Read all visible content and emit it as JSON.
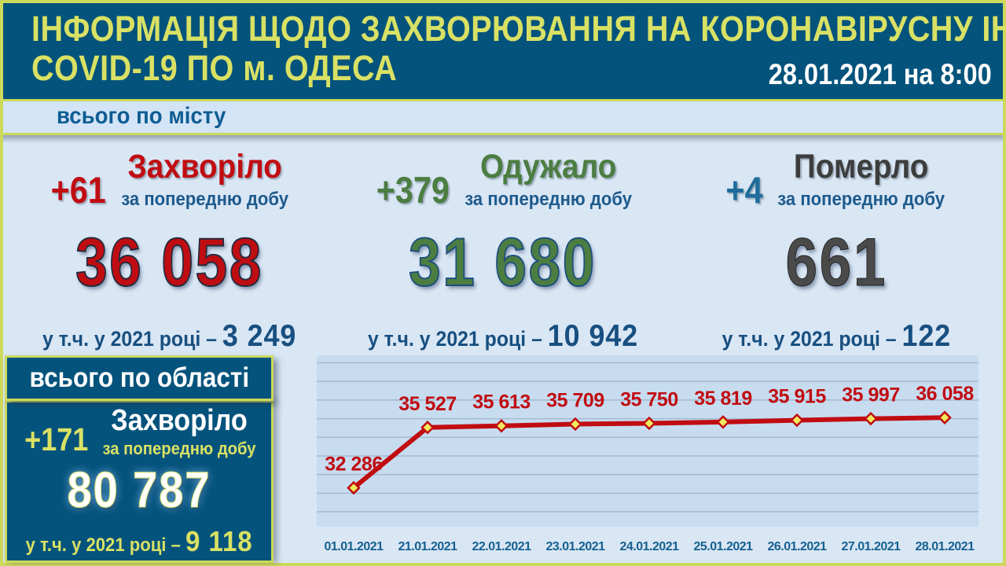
{
  "header": {
    "title_line1": "ІНФОРМАЦІЯ ЩОДО ЗАХВОРЮВАННЯ НА КОРОНАВІРУСНУ ІНФЕКЦІЮ",
    "title_line2": "COVID-19 ПО м. ОДЕСА",
    "date": "28.01.2021 на 8:00"
  },
  "city_band": {
    "label": "всього по місту"
  },
  "stats": {
    "0": {
      "delta": "+61",
      "title": "Захворіло",
      "subtitle": "за попередню добу",
      "total": "36 058",
      "year_label": "у т.ч. у 2021 році – ",
      "year_value": "3 249",
      "color": "#c00d12"
    },
    "1": {
      "delta": "+379",
      "title": "Одужало",
      "subtitle": "за попередню добу",
      "total": "31 680",
      "year_label": "у т.ч. у 2021 році – ",
      "year_value": "10 942",
      "color": "#4c7d41"
    },
    "2": {
      "delta": "+4",
      "title": "Померло",
      "subtitle": "за попередню добу",
      "total": "661",
      "year_label": "у т.ч. у 2021 році – ",
      "year_value": "122",
      "color": "#4a4a4a"
    }
  },
  "region_box": {
    "title": "всього по області",
    "delta": "+171",
    "stat_title": "Захворіло",
    "subtitle": "за попередню добу",
    "total": "80 787",
    "year_label": "у т.ч. у 2021 році – ",
    "year_value": "9 118"
  },
  "chart_data": {
    "type": "line",
    "title": "",
    "xlabel": "",
    "ylabel": "",
    "x": [
      "01.01.2021",
      "21.01.2021",
      "22.01.2021",
      "23.01.2021",
      "24.01.2021",
      "25.01.2021",
      "26.01.2021",
      "27.01.2021",
      "28.01.2021"
    ],
    "values": [
      32286,
      35527,
      35613,
      35709,
      35750,
      35819,
      35915,
      35997,
      36058
    ],
    "point_labels": [
      "32 286",
      "35 527",
      "35 613",
      "35 709",
      "35 750",
      "35 819",
      "35 915",
      "35 997",
      "36 058"
    ],
    "ylim": [
      30200,
      39400
    ],
    "grid": true,
    "grid_step": 1000,
    "legend": "none",
    "line_color": "#c00d12",
    "marker_shape": "diamond",
    "marker_fill": "#efe95c",
    "marker_stroke": "#c00d12",
    "panel_bg": "#c8dcf0",
    "grid_color": "#a4bacf",
    "point_label_color": "#c00d12",
    "axis_label_color": "#15608f"
  },
  "colors": {
    "frame": "#ccd95b",
    "header_bg": "#04537c",
    "header_title": "#d9e164",
    "band_bg": "#d3e4f6",
    "band_text": "#0e5c94",
    "main_bg": "#d9e6f4",
    "accent_red": "#c00d12",
    "accent_green": "#4c7d41",
    "accent_gray": "#4a4a4a",
    "accent_steel_blue": "#1f6c9c",
    "small_text_blue": "#1d5a8c",
    "deep_blue": "#174f80"
  }
}
